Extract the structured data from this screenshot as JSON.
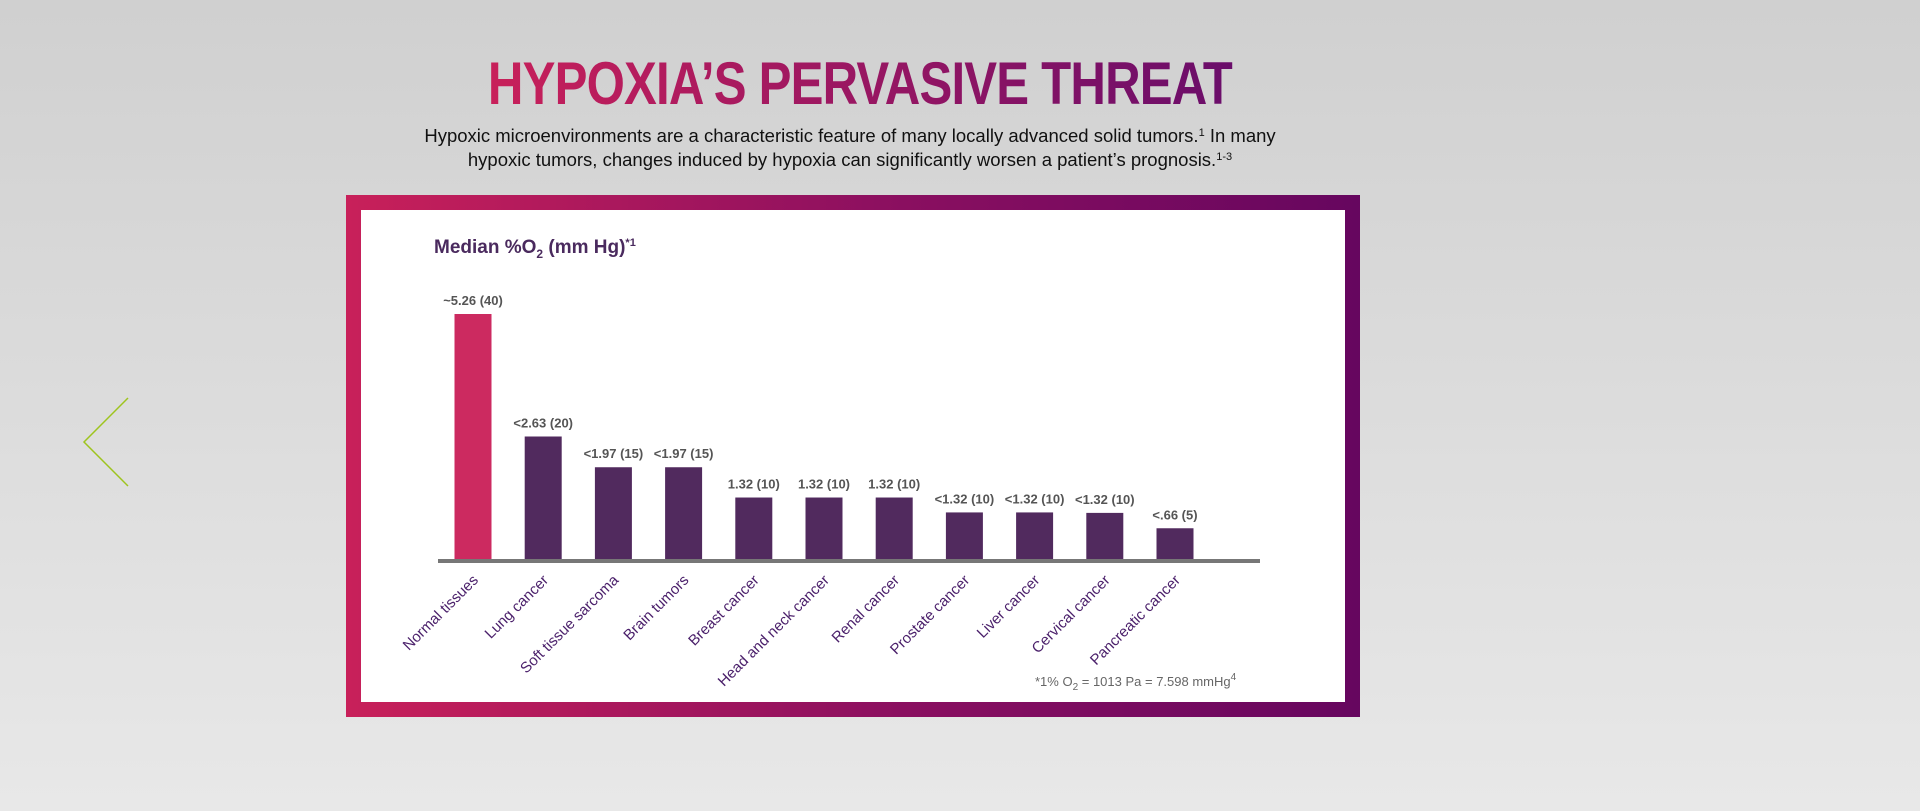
{
  "title": "HYPOXIA’S PERVASIVE THREAT",
  "subtitle": {
    "line1": "Hypoxic microenvironments are a characteristic feature of many locally advanced solid tumors.",
    "line1_sup": "1",
    "line1_tail": " In many",
    "line2": "hypoxic tumors, changes induced by hypoxia can significantly worsen a patient’s prognosis.",
    "line2_sup": "1-3"
  },
  "nav": {
    "prev_icon": "chevron-left-icon"
  },
  "colors": {
    "highlight": "#cc2a60",
    "bar": "#512a5e",
    "axis": "#777777"
  },
  "chart_data": {
    "type": "bar",
    "ylabel": {
      "pre": "Median %O",
      "sub": "2",
      "post": " (mm Hg)",
      "sup": "*1"
    },
    "ylim": [
      0,
      5.26
    ],
    "categories": [
      "Normal tissues",
      "Lung cancer",
      "Soft tissue sarcoma",
      "Brain tumors",
      "Breast cancer",
      "Head and neck cancer",
      "Renal cancer",
      "Prostate cancer",
      "Liver cancer",
      "Cervical cancer",
      "Pancreatic cancer"
    ],
    "values": [
      5.26,
      2.63,
      1.97,
      1.97,
      1.32,
      1.32,
      1.32,
      1.0,
      1.0,
      0.99,
      0.66
    ],
    "value_labels": [
      "~5.26 (40)",
      "<2.63 (20)",
      "<1.97 (15)",
      "<1.97 (15)",
      "1.32 (10)",
      "1.32 (10)",
      "1.32 (10)",
      "<1.32 (10)",
      "<1.32 (10)",
      "<1.32 (10)",
      "<.66 (5)"
    ],
    "highlight_index": 0,
    "footnote": {
      "pre": "*1% O",
      "sub": "2",
      "mid": " = 1013 Pa = 7.598 mmHg",
      "sup": "4"
    }
  }
}
